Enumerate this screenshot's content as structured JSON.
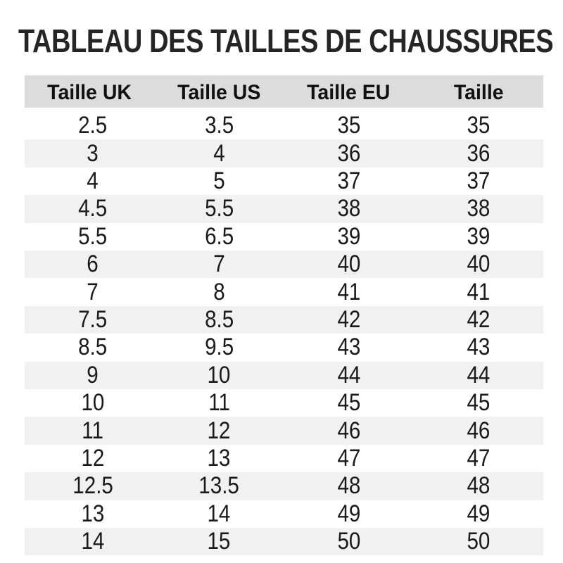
{
  "page": {
    "background": "#ffffff"
  },
  "title": "TABLEAU DES TAILLES DE CHAUSSURES",
  "size_chart": {
    "colors": {
      "header_background": "#dcdcdc",
      "stripe_background": "#f1f1f1",
      "header_text": "#111111",
      "cell_text": "#1a1a1a",
      "title_text": "#252525"
    },
    "headers": [
      "Taille UK",
      "Taille US",
      "Taille EU",
      "Taille"
    ],
    "rows": [
      [
        "2.5",
        "3.5",
        "35",
        "35"
      ],
      [
        "3",
        "4",
        "36",
        "36"
      ],
      [
        "4",
        "5",
        "37",
        "37"
      ],
      [
        "4.5",
        "5.5",
        "38",
        "38"
      ],
      [
        "5.5",
        "6.5",
        "39",
        "39"
      ],
      [
        "6",
        "7",
        "40",
        "40"
      ],
      [
        "7",
        "8",
        "41",
        "41"
      ],
      [
        "7.5",
        "8.5",
        "42",
        "42"
      ],
      [
        "8.5",
        "9.5",
        "43",
        "43"
      ],
      [
        "9",
        "10",
        "44",
        "44"
      ],
      [
        "10",
        "11",
        "45",
        "45"
      ],
      [
        "11",
        "12",
        "46",
        "46"
      ],
      [
        "12",
        "13",
        "47",
        "47"
      ],
      [
        "12.5",
        "13.5",
        "48",
        "48"
      ],
      [
        "13",
        "14",
        "49",
        "49"
      ],
      [
        "14",
        "15",
        "50",
        "50"
      ]
    ]
  }
}
